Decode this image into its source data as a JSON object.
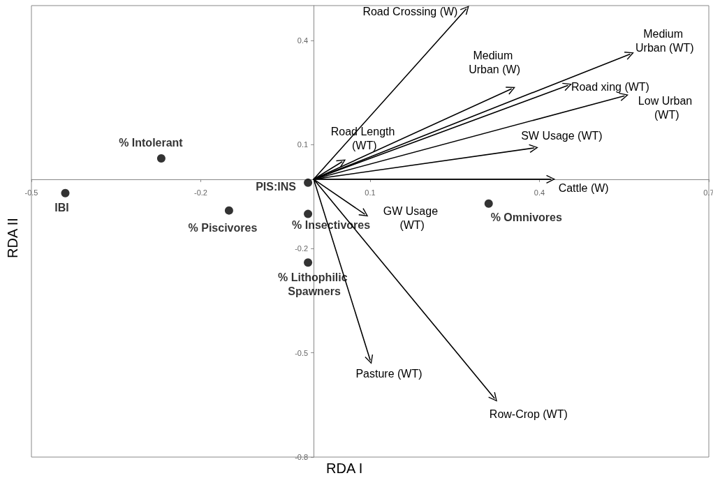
{
  "chart_data": {
    "type": "scatter",
    "xlabel": "RDA I",
    "ylabel": "RDA II",
    "xlim": [
      -0.5,
      0.7
    ],
    "xticks": [
      -0.5,
      -0.2,
      0.1,
      0.4,
      0.7
    ],
    "ylim": [
      -0.8,
      0.5
    ],
    "yticks": [
      -0.8,
      -0.5,
      -0.2,
      0.1,
      0.4
    ],
    "marker": "circle",
    "line_style": "solid",
    "series": [
      {
        "type": "scatter",
        "name": "IBI",
        "color": "#000000",
        "x": [
          -0.44
        ],
        "values": [
          -0.04
        ]
      },
      {
        "type": "scatter",
        "name": "% Intolerant",
        "color": "#000000",
        "x": [
          -0.27
        ],
        "values": [
          0.06
        ]
      },
      {
        "type": "scatter",
        "name": "% Piscivores",
        "color": "#000000",
        "x": [
          -0.15
        ],
        "values": [
          -0.09
        ]
      },
      {
        "type": "scatter",
        "name": "PIS:INS",
        "color": "#000000",
        "x": [
          -0.01
        ],
        "values": [
          -0.01
        ]
      },
      {
        "type": "scatter",
        "name": "% Insectivores",
        "color": "#000000",
        "x": [
          -0.01
        ],
        "values": [
          -0.1
        ]
      },
      {
        "type": "scatter",
        "name": "% Lithophilic Spawners",
        "color": "#000000",
        "x": [
          -0.01
        ],
        "values": [
          -0.24
        ]
      },
      {
        "type": "scatter",
        "name": "% Omnivores",
        "color": "#000000",
        "x": [
          0.31
        ],
        "values": [
          -0.07
        ]
      },
      {
        "type": "line",
        "name": "Road Crossing (W)",
        "color": "#000000",
        "x": [
          0,
          0.27
        ],
        "values": [
          0,
          0.49
        ]
      },
      {
        "type": "line",
        "name": "Medium Urban (W)",
        "color": "#000000",
        "x": [
          0,
          0.35
        ],
        "values": [
          0,
          0.26
        ]
      },
      {
        "type": "line",
        "name": "Road xing (WT)",
        "color": "#000000",
        "x": [
          0,
          0.45
        ],
        "values": [
          0,
          0.27
        ]
      },
      {
        "type": "line",
        "name": "Medium Urban (WT)",
        "color": "#000000",
        "x": [
          0,
          0.56
        ],
        "values": [
          0,
          0.36
        ]
      },
      {
        "type": "line",
        "name": "Low Urban (WT)",
        "color": "#000000",
        "x": [
          0,
          0.55
        ],
        "values": [
          0,
          0.24
        ]
      },
      {
        "type": "line",
        "name": "SW Usage (WT)",
        "color": "#000000",
        "x": [
          0,
          0.39
        ],
        "values": [
          0,
          0.09
        ]
      },
      {
        "type": "line",
        "name": "Cattle (W)",
        "color": "#000000",
        "x": [
          0,
          0.42
        ],
        "values": [
          0,
          0
        ]
      },
      {
        "type": "line",
        "name": "Road Length (WT)",
        "color": "#000000",
        "x": [
          0,
          0.05
        ],
        "values": [
          0,
          0.05
        ]
      },
      {
        "type": "line",
        "name": "GW Usage (WT)",
        "color": "#000000",
        "x": [
          0,
          0.09
        ],
        "values": [
          0,
          -0.1
        ]
      },
      {
        "type": "line",
        "name": "Pasture (WT)",
        "color": "#000000",
        "x": [
          0,
          0.1
        ],
        "values": [
          0,
          -0.52
        ]
      },
      {
        "type": "line",
        "name": "Row-Crop (WT)",
        "color": "#000000",
        "x": [
          0,
          0.32
        ],
        "values": [
          0,
          -0.63
        ]
      }
    ]
  }
}
